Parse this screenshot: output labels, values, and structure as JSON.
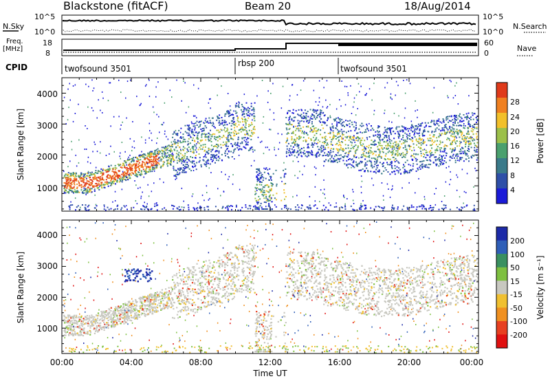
{
  "header": {
    "radar": "Blackstone (fitACF)",
    "beam": "Beam 20",
    "date": "18/Aug/2014"
  },
  "top_panels": {
    "nsky_label": "N.Sky",
    "nsearch_label": "N.Search",
    "left_ticks": [
      "10^5",
      "10^0"
    ],
    "right_ticks": [
      "10^5",
      "10^0"
    ],
    "freq_label_1": "Freq.",
    "freq_label_2": "[MHz]",
    "freq_ticks": [
      "18",
      "8"
    ],
    "nave_label": "Nave",
    "nave_ticks": [
      "60",
      "0"
    ],
    "cpid_label": "CPID",
    "cpid_modes": [
      {
        "name": "twofsound 3501",
        "start_hour": 0
      },
      {
        "name": "rbsp 200",
        "start_hour": 10
      },
      {
        "name": "twofsound 3501",
        "start_hour": 16
      }
    ]
  },
  "chart_data": [
    {
      "type": "heatmap",
      "title": "",
      "xlabel": "Time UT",
      "ylabel": "Slant Range [km]",
      "x_range_hours": [
        0,
        24
      ],
      "ylim": [
        180,
        4500
      ],
      "y_ticks": [
        "1000",
        "2000",
        "3000",
        "4000"
      ],
      "colorbar": {
        "label": "Power [dB]",
        "ticks": [
          "4",
          "8",
          "12",
          "16",
          "20",
          "24",
          "28"
        ],
        "colors": [
          "#1b1bd8",
          "#2e4fa8",
          "#3a7a8a",
          "#4aa06e",
          "#9cc04a",
          "#f2c02a",
          "#f08020",
          "#e03a1a"
        ]
      }
    },
    {
      "type": "heatmap",
      "title": "",
      "xlabel": "Time UT",
      "ylabel": "Slant Range [km]",
      "x_range_hours": [
        0,
        24
      ],
      "ylim": [
        180,
        4500
      ],
      "y_ticks": [
        "1000",
        "2000",
        "3000",
        "4000"
      ],
      "x_ticks": [
        "00:00",
        "04:00",
        "08:00",
        "12:00",
        "16:00",
        "20:00",
        "00:00"
      ],
      "colorbar": {
        "label": "Velocity [m s⁻¹]",
        "ticks": [
          "200",
          "100",
          "50",
          "15",
          "-15",
          "-50",
          "-100",
          "-200"
        ],
        "colors": [
          "#1c2aa8",
          "#2f5fb8",
          "#3a9060",
          "#7ec040",
          "#c8c8c0",
          "#f0c030",
          "#f09020",
          "#e84020",
          "#e01010"
        ]
      }
    }
  ],
  "x_axis": {
    "label": "Time UT",
    "ticks": [
      "00:00",
      "04:00",
      "08:00",
      "12:00",
      "16:00",
      "20:00",
      "00:00"
    ]
  }
}
